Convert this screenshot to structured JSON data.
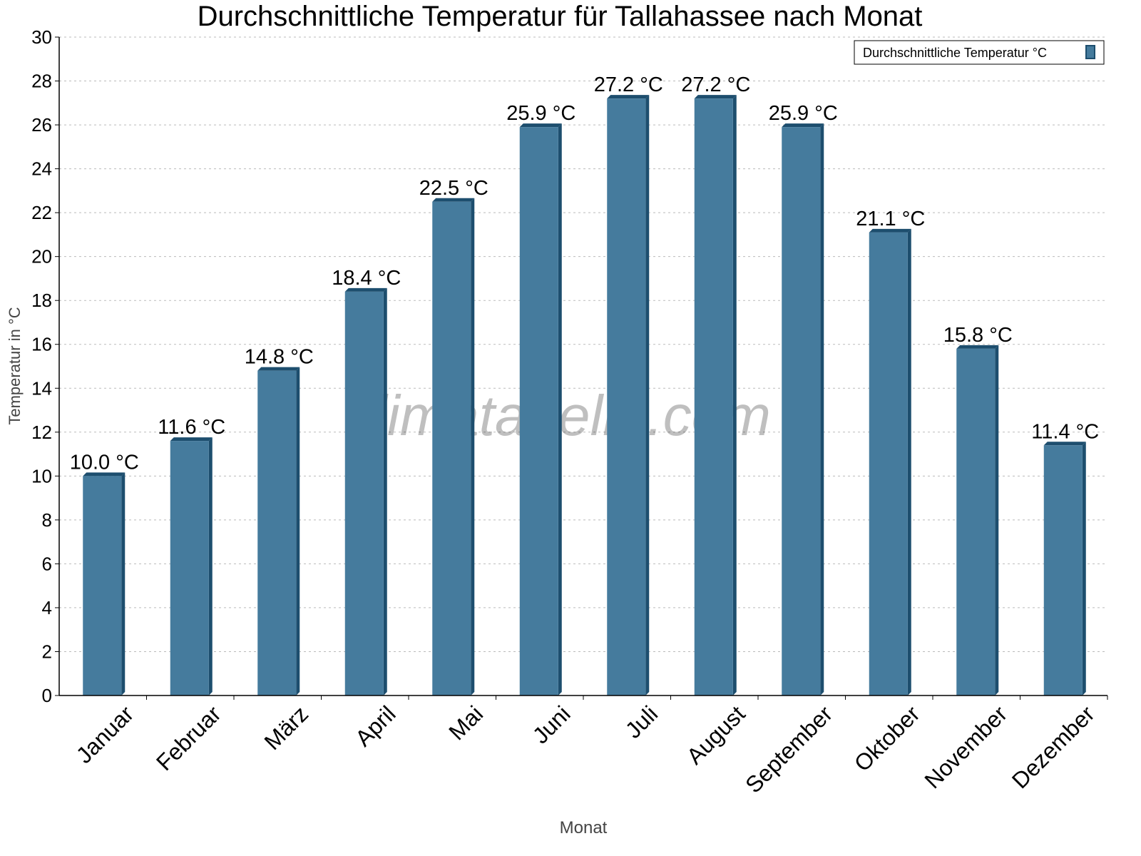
{
  "chart_data": {
    "type": "bar",
    "title": "Durchschnittliche Temperatur für Tallahassee nach Monat",
    "xlabel": "Monat",
    "ylabel": "Temperatur in °C",
    "categories": [
      "Januar",
      "Februar",
      "März",
      "April",
      "Mai",
      "Juni",
      "Juli",
      "August",
      "September",
      "Oktober",
      "November",
      "Dezember"
    ],
    "series": [
      {
        "name": "Durchschnittliche Temperatur °C",
        "values": [
          10.0,
          11.6,
          14.8,
          18.4,
          22.5,
          25.9,
          27.2,
          27.2,
          25.9,
          21.1,
          15.8,
          11.4
        ]
      }
    ],
    "data_labels": [
      "10.0 °C",
      "11.6 °C",
      "14.8 °C",
      "18.4 °C",
      "22.5 °C",
      "25.9 °C",
      "27.2 °C",
      "27.2 °C",
      "25.9 °C",
      "21.1 °C",
      "15.8 °C",
      "11.4 °C"
    ],
    "ylim": [
      0,
      30
    ],
    "yticks": [
      0,
      2,
      4,
      6,
      8,
      10,
      12,
      14,
      16,
      18,
      20,
      22,
      24,
      26,
      28,
      30
    ],
    "grid": true,
    "legend_position": "top-right",
    "colors": {
      "bar": "#457b9d",
      "bar_edge": "#1d4e6e"
    },
    "watermark": "klimatabelle.com"
  }
}
